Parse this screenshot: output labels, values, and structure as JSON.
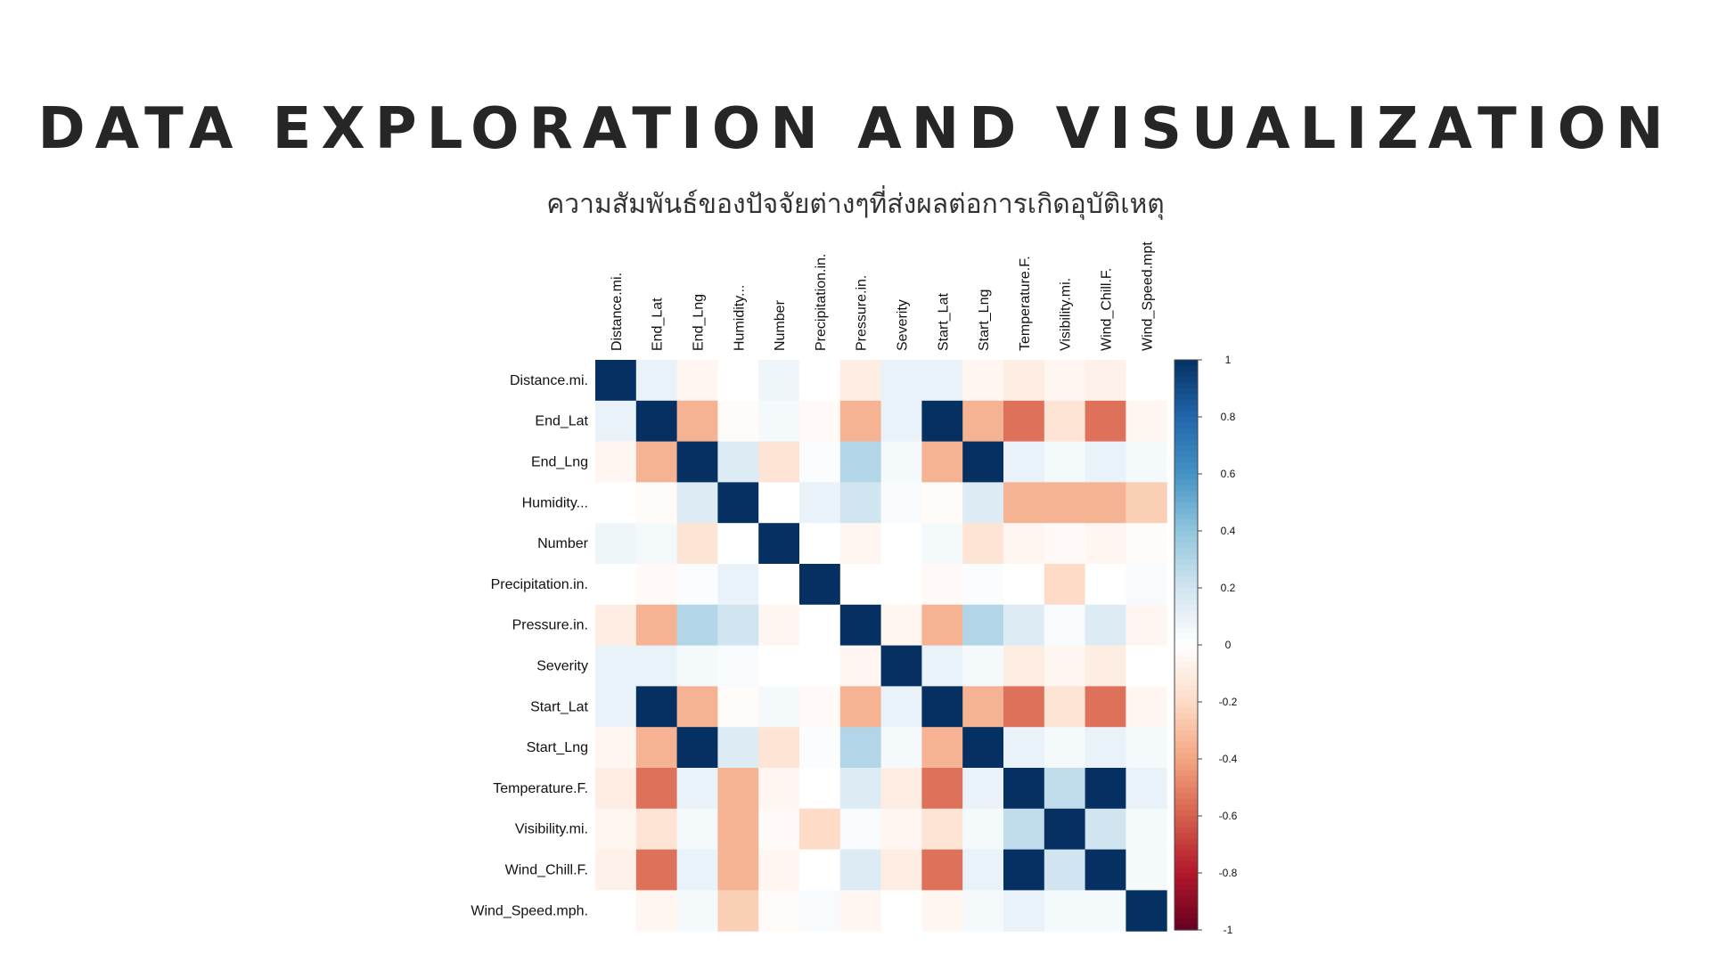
{
  "slide": {
    "title": "DATA EXPLORATION AND VISUALIZATION",
    "subtitle": "ความสัมพันธ์ของปัจจัยต่างๆที่ส่งผลต่อการเกิดอุบัติเหตุ"
  },
  "chart_data": {
    "type": "heatmap",
    "title": "",
    "variables": [
      "Distance.mi.",
      "End_Lat",
      "End_Lng",
      "Humidity...",
      "Number",
      "Precipitation.in.",
      "Pressure.in.",
      "Severity",
      "Start_Lat",
      "Start_Lng",
      "Temperature.F.",
      "Visibility.mi.",
      "Wind_Chill.F.",
      "Wind_Speed.mph."
    ],
    "column_labels": [
      "Distance.mi.",
      "End_Lat",
      "End_Lng",
      "Humidity...",
      "Number",
      "Precipitation.in.",
      "Pressure.in.",
      "Severity",
      "Start_Lat",
      "Start_Lng",
      "Temperature.F.",
      "Visibility.mi.",
      "Wind_Chill.F.",
      "Wind_Speed.mpt"
    ],
    "matrix": [
      [
        1.0,
        0.1,
        -0.05,
        0.0,
        0.07,
        0.0,
        -0.1,
        0.1,
        0.1,
        -0.05,
        -0.1,
        -0.05,
        -0.08,
        0.0
      ],
      [
        0.1,
        1.0,
        -0.35,
        -0.02,
        0.05,
        -0.03,
        -0.35,
        0.1,
        1.0,
        -0.35,
        -0.55,
        -0.15,
        -0.55,
        -0.05
      ],
      [
        -0.05,
        -0.35,
        1.0,
        0.15,
        -0.15,
        0.02,
        0.3,
        0.05,
        -0.35,
        1.0,
        0.1,
        0.05,
        0.1,
        0.05
      ],
      [
        0.0,
        -0.02,
        0.15,
        1.0,
        0.0,
        0.1,
        0.2,
        0.03,
        -0.02,
        0.15,
        -0.35,
        -0.35,
        -0.35,
        -0.25
      ],
      [
        0.07,
        0.05,
        -0.15,
        0.0,
        1.0,
        0.0,
        -0.05,
        0.0,
        0.05,
        -0.15,
        -0.05,
        -0.03,
        -0.05,
        -0.02
      ],
      [
        0.0,
        -0.03,
        0.02,
        0.1,
        0.0,
        1.0,
        0.0,
        0.0,
        -0.03,
        0.02,
        0.0,
        -0.2,
        0.0,
        0.03
      ],
      [
        -0.1,
        -0.35,
        0.3,
        0.2,
        -0.05,
        0.0,
        1.0,
        -0.05,
        -0.35,
        0.3,
        0.15,
        0.03,
        0.15,
        -0.05
      ],
      [
        0.1,
        0.1,
        0.05,
        0.03,
        0.0,
        0.0,
        -0.05,
        1.0,
        0.1,
        0.05,
        -0.1,
        -0.05,
        -0.1,
        0.0
      ],
      [
        0.1,
        1.0,
        -0.35,
        -0.02,
        0.05,
        -0.03,
        -0.35,
        0.1,
        1.0,
        -0.35,
        -0.55,
        -0.15,
        -0.55,
        -0.05
      ],
      [
        -0.05,
        -0.35,
        1.0,
        0.15,
        -0.15,
        0.02,
        0.3,
        0.05,
        -0.35,
        1.0,
        0.1,
        0.05,
        0.1,
        0.05
      ],
      [
        -0.1,
        -0.55,
        0.1,
        -0.35,
        -0.05,
        0.0,
        0.15,
        -0.1,
        -0.55,
        0.1,
        1.0,
        0.25,
        1.0,
        0.1
      ],
      [
        -0.05,
        -0.15,
        0.05,
        -0.35,
        -0.03,
        -0.2,
        0.03,
        -0.05,
        -0.15,
        0.05,
        0.25,
        1.0,
        0.2,
        0.05
      ],
      [
        -0.08,
        -0.55,
        0.1,
        -0.35,
        -0.05,
        0.0,
        0.15,
        -0.1,
        -0.55,
        0.1,
        1.0,
        0.2,
        1.0,
        0.05
      ],
      [
        0.0,
        -0.05,
        0.05,
        -0.25,
        -0.02,
        0.03,
        -0.05,
        0.0,
        -0.05,
        0.05,
        0.1,
        0.05,
        0.05,
        1.0
      ]
    ],
    "colorbar": {
      "range": [
        -1,
        1
      ],
      "ticks": [
        "1",
        "0.8",
        "0.6",
        "0.4",
        "0.2",
        "0",
        "-0.2",
        "-0.4",
        "-0.6",
        "-0.8",
        "-1"
      ],
      "colors": {
        "neg1": "#67001F",
        "neg08": "#B2182B",
        "neg06": "#D6604D",
        "neg04": "#F4A582",
        "neg02": "#FDDBC7",
        "zero": "#FFFFFF",
        "pos02": "#D1E5F0",
        "pos04": "#92C5DE",
        "pos06": "#4393C3",
        "pos08": "#2166AC",
        "pos1": "#053061"
      }
    },
    "grid": false,
    "legend": "right"
  }
}
